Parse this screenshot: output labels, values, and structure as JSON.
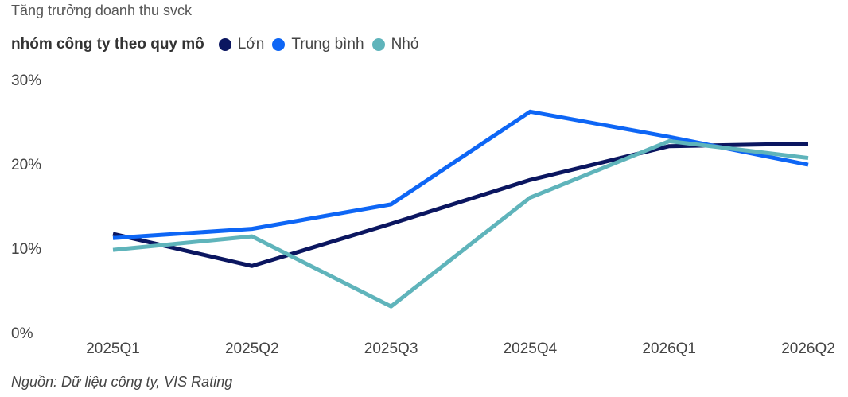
{
  "subtitle": "Tăng trưởng doanh thu svck",
  "legend": {
    "title": "nhóm công ty theo quy mô",
    "items": [
      {
        "label": "Lớn",
        "color": "#0b1660"
      },
      {
        "label": "Trung bình",
        "color": "#0e66f5"
      },
      {
        "label": "Nhỏ",
        "color": "#5fb4bb"
      }
    ]
  },
  "source": "Nguồn: Dữ liệu công ty, VIS Rating",
  "chart_data": {
    "type": "line",
    "categories": [
      "2025Q1",
      "2025Q2",
      "2025Q3",
      "2025Q4",
      "2026Q1",
      "2026Q2"
    ],
    "y_ticks": [
      "0%",
      "10%",
      "20%",
      "30%"
    ],
    "ylim": [
      0,
      30
    ],
    "grid": false,
    "legend_position": "top-left",
    "series": [
      {
        "name": "Lớn",
        "color": "#0b1660",
        "values": [
          11.7,
          7.9,
          12.9,
          18.1,
          22.1,
          22.4
        ]
      },
      {
        "name": "Trung bình",
        "color": "#0e66f5",
        "values": [
          11.2,
          12.3,
          15.2,
          26.2,
          23.2,
          19.9
        ]
      },
      {
        "name": "Nhỏ",
        "color": "#5fb4bb",
        "values": [
          9.8,
          11.4,
          3.1,
          16.0,
          22.7,
          20.7
        ]
      }
    ]
  }
}
